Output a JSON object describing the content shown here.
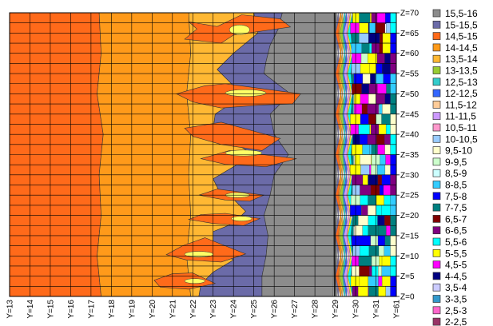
{
  "chart_data": {
    "type": "heatmap",
    "x_ticks": [
      "Y=13",
      "Y=14",
      "Y=15",
      "Y=16",
      "Y=17",
      "Y=18",
      "Y=19",
      "Y=20",
      "Y=21",
      "Y=22",
      "Y=23",
      "Y=24",
      "Y=25",
      "Y=26",
      "Y=27",
      "Y=28",
      "Y=29",
      "Y=30",
      "Y=31",
      "Y=61"
    ],
    "y_ticks": [
      "Z=70",
      "Z=65",
      "Z=60",
      "Z=55",
      "Z=50",
      "Z=45",
      "Z=40",
      "Z=35",
      "Z=30",
      "Z=25",
      "Z=20",
      "Z=15",
      "Z=10",
      "Z=5",
      "Z=0"
    ],
    "grid": true,
    "legend_position": "right",
    "levels": [
      {
        "label": "15,5-16",
        "color": "#8c8c8c"
      },
      {
        "label": "15-15,5",
        "color": "#6b6ba8"
      },
      {
        "label": "14,5-15",
        "color": "#ff6a1a"
      },
      {
        "label": "14-14,5",
        "color": "#ff9a1a"
      },
      {
        "label": "13,5-14",
        "color": "#ffb833"
      },
      {
        "label": "13-13,5",
        "color": "#99cc33"
      },
      {
        "label": "12,5-13",
        "color": "#33cccc"
      },
      {
        "label": "12-12,5",
        "color": "#3366ff"
      },
      {
        "label": "11,5-12",
        "color": "#ffcc99"
      },
      {
        "label": "11-11,5",
        "color": "#cc99ff"
      },
      {
        "label": "10,5-11",
        "color": "#ff99cc"
      },
      {
        "label": "10-10,5",
        "color": "#99ccff"
      },
      {
        "label": "9,5-10",
        "color": "#ffffcc"
      },
      {
        "label": "9-9,5",
        "color": "#ccffcc"
      },
      {
        "label": "8,5-9",
        "color": "#ccffff"
      },
      {
        "label": "8-8,5",
        "color": "#33ccff"
      },
      {
        "label": "7,5-8",
        "color": "#0000ff"
      },
      {
        "label": "7-7,5",
        "color": "#008080"
      },
      {
        "label": "6,5-7",
        "color": "#800000"
      },
      {
        "label": "6-6,5",
        "color": "#800080"
      },
      {
        "label": "5,5-6",
        "color": "#00ffff"
      },
      {
        "label": "5-5,5",
        "color": "#ffff00"
      },
      {
        "label": "4,5-5",
        "color": "#ff00ff"
      },
      {
        "label": "4-4,5",
        "color": "#000080"
      },
      {
        "label": "3,5-4",
        "color": "#ccccff"
      },
      {
        "label": "3-3,5",
        "color": "#3399cc"
      },
      {
        "label": "2,5-3",
        "color": "#ff66cc"
      },
      {
        "label": "2-2,5",
        "color": "#993366"
      }
    ],
    "band_boundaries": [
      {
        "between": [
          "14,5-15",
          "14-14,5"
        ],
        "y_at_z": [
          [
            70,
            17.4
          ],
          [
            60,
            17.5
          ],
          [
            50,
            17.3
          ],
          [
            40,
            17.6
          ],
          [
            30,
            17.4
          ],
          [
            20,
            17.5
          ],
          [
            10,
            17.3
          ],
          [
            0,
            17.5
          ]
        ]
      },
      {
        "between": [
          "14-14,5",
          "13,5-14"
        ],
        "y_at_z": [
          [
            70,
            21.8
          ],
          [
            60,
            21.9
          ],
          [
            50,
            21.7
          ],
          [
            40,
            21.9
          ],
          [
            30,
            21.8
          ],
          [
            20,
            21.9
          ],
          [
            10,
            21.7
          ],
          [
            0,
            21.9
          ]
        ]
      },
      {
        "between": [
          "14,5-15",
          "15-15,5"
        ],
        "y_at_z": [
          [
            70,
            25.0
          ],
          [
            65,
            25.2
          ],
          [
            60,
            24.0
          ],
          [
            56,
            23.2
          ],
          [
            52,
            24.0
          ],
          [
            50,
            25.1
          ],
          [
            48,
            24.0
          ],
          [
            45,
            23.1
          ],
          [
            41,
            23.0
          ],
          [
            38,
            24.0
          ],
          [
            35,
            25.0
          ],
          [
            32,
            24.0
          ],
          [
            29,
            23.0
          ],
          [
            26,
            23.3
          ],
          [
            24,
            24.0
          ],
          [
            21,
            24.6
          ],
          [
            18,
            24.0
          ],
          [
            16,
            23.0
          ],
          [
            12,
            23.0
          ],
          [
            9,
            24.0
          ],
          [
            6,
            23.0
          ],
          [
            3,
            22.4
          ],
          [
            0,
            22.3
          ]
        ]
      },
      {
        "between": [
          "15-15,5",
          "15,5-16"
        ],
        "y_at_z": [
          [
            70,
            26.4
          ],
          [
            66,
            26.2
          ],
          [
            62,
            25.8
          ],
          [
            58,
            25.6
          ],
          [
            55,
            25.5
          ],
          [
            50,
            26.8
          ],
          [
            45,
            25.8
          ],
          [
            40,
            26.0
          ],
          [
            35,
            26.7
          ],
          [
            30,
            26.0
          ],
          [
            25,
            25.8
          ],
          [
            20,
            25.5
          ],
          [
            15,
            25.7
          ],
          [
            10,
            25.6
          ],
          [
            5,
            25.4
          ],
          [
            0,
            25.4
          ]
        ]
      },
      {
        "between": [
          "15,5-16",
          "mixed"
        ],
        "y_at_z": [
          [
            70,
            29.0
          ],
          [
            0,
            28.9
          ]
        ]
      }
    ]
  }
}
